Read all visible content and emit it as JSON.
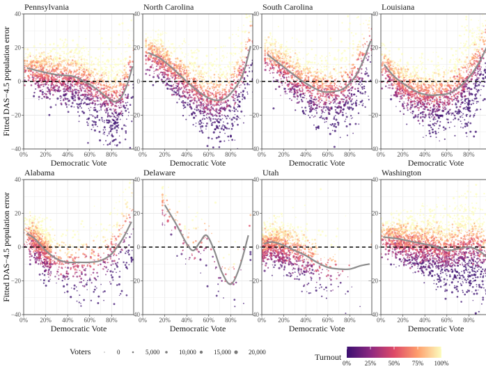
{
  "chart_data": {
    "type": "scatter",
    "ylabel": "Fitted DAS−4.5 population error",
    "xlabel": "Democratic Vote",
    "x_ticks": [
      "0%",
      "20%",
      "40%",
      "60%",
      "80%"
    ],
    "y_ticks": [
      "−40",
      "−20",
      "0",
      "20",
      "40"
    ],
    "xlim": [
      0,
      1
    ],
    "ylim": [
      -40,
      40
    ],
    "grid": true,
    "reference_line": 0,
    "panels": [
      {
        "title": "Pennsylvania",
        "density": 1800,
        "trend": {
          "x": [
            0.03,
            0.15,
            0.3,
            0.45,
            0.55,
            0.65,
            0.75,
            0.82,
            0.88,
            0.94,
            0.99
          ],
          "y": [
            8,
            6,
            4,
            3,
            0,
            -4,
            -9,
            -12,
            -10,
            -2,
            9
          ]
        }
      },
      {
        "title": "North Carolina",
        "density": 1600,
        "trend": {
          "x": [
            0.05,
            0.15,
            0.25,
            0.35,
            0.45,
            0.55,
            0.65,
            0.75,
            0.85,
            0.92,
            0.98
          ],
          "y": [
            17,
            14,
            9,
            3,
            -3,
            -8,
            -11,
            -10,
            -3,
            6,
            21
          ]
        }
      },
      {
        "title": "South Carolina",
        "density": 1400,
        "trend": {
          "x": [
            0.05,
            0.15,
            0.25,
            0.35,
            0.45,
            0.55,
            0.65,
            0.75,
            0.85,
            0.92,
            0.99
          ],
          "y": [
            16,
            11,
            6,
            1,
            -3,
            -6,
            -6,
            -4,
            3,
            12,
            24
          ]
        }
      },
      {
        "title": "Louisiana",
        "density": 1700,
        "trend": {
          "x": [
            0.03,
            0.12,
            0.22,
            0.32,
            0.42,
            0.52,
            0.62,
            0.72,
            0.82,
            0.9,
            0.96
          ],
          "y": [
            10,
            3,
            -2,
            -6,
            -8,
            -8,
            -7,
            -3,
            4,
            12,
            20
          ]
        }
      },
      {
        "title": "Alabama",
        "density": 1200,
        "trend": {
          "x": [
            0.03,
            0.1,
            0.2,
            0.3,
            0.4,
            0.5,
            0.6,
            0.7,
            0.8,
            0.9,
            0.98
          ],
          "y": [
            8,
            5,
            -2,
            -7,
            -9,
            -9,
            -9,
            -8,
            -4,
            5,
            15
          ]
        }
      },
      {
        "title": "Delaware",
        "density": 160,
        "trend": {
          "x": [
            0.2,
            0.3,
            0.4,
            0.46,
            0.52,
            0.58,
            0.65,
            0.72,
            0.8,
            0.88,
            0.96
          ],
          "y": [
            25,
            14,
            2,
            -2,
            3,
            7,
            -2,
            -15,
            -22,
            -12,
            7
          ]
        }
      },
      {
        "title": "Utah",
        "density": 1100,
        "trend": {
          "x": [
            0.02,
            0.1,
            0.2,
            0.3,
            0.4,
            0.5,
            0.6,
            0.7,
            0.8,
            0.9,
            0.98
          ],
          "y": [
            2,
            3,
            1,
            -2,
            -5,
            -9,
            -12,
            -13,
            -13,
            -11,
            -10
          ]
        }
      },
      {
        "title": "Washington",
        "density": 2200,
        "trend": {
          "x": [
            0.02,
            0.15,
            0.3,
            0.45,
            0.55,
            0.62,
            0.7,
            0.78,
            0.86,
            0.93,
            0.99
          ],
          "y": [
            6,
            5,
            3,
            1,
            -1,
            -2,
            -1,
            0,
            -1,
            -4,
            -8
          ]
        }
      }
    ],
    "legend": {
      "position": "bottom",
      "size_title": "Voters",
      "size_labels": [
        "0",
        "5,000",
        "10,000",
        "15,000",
        "20,000"
      ],
      "color_title": "Turnout",
      "color_labels": [
        "0%",
        "25%",
        "50%",
        "75%",
        "100%"
      ],
      "color_scale": [
        "#3b0f70",
        "#8c2981",
        "#de4968",
        "#fe9f6d",
        "#fcfdbf"
      ]
    },
    "colors": {
      "trend": "#8c8c8c",
      "reference": "#000000",
      "grid": "#ebebeb",
      "panel_border": "#333333"
    }
  }
}
